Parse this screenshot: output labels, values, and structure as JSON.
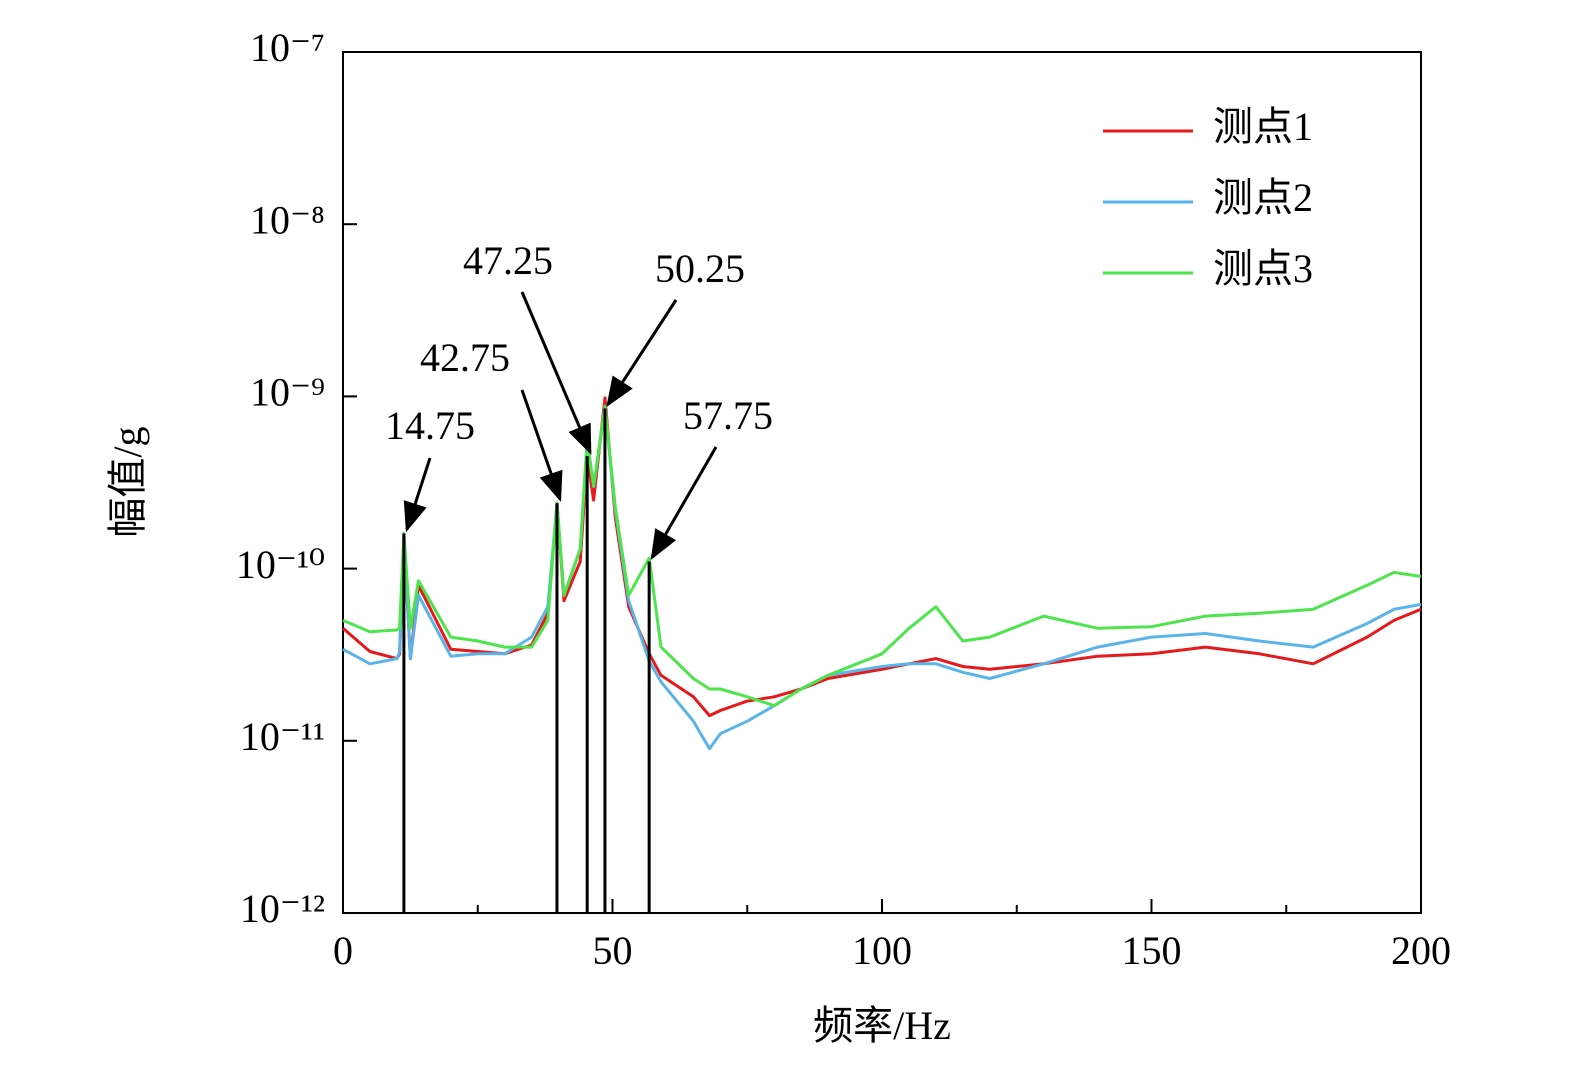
{
  "chart_data": {
    "type": "line",
    "xlabel": "频率/Hz",
    "ylabel": "幅值/g",
    "x": [
      0,
      5,
      10,
      10.5,
      11.3,
      12.5,
      14,
      20,
      25,
      30,
      35,
      38,
      39.7,
      41,
      44,
      45.3,
      46.5,
      48.6,
      50.5,
      53,
      56.8,
      59,
      65,
      68,
      70,
      75,
      80,
      85,
      90,
      100,
      105,
      110,
      115,
      120,
      130,
      140,
      150,
      160,
      170,
      180,
      190,
      195,
      200
    ],
    "series": [
      {
        "name": "测点1",
        "color": "#e41a1c",
        "values": [
          4.5e-11,
          3.3e-11,
          3e-11,
          3.2e-11,
          1.5e-10,
          3e-11,
          8e-11,
          3.4e-11,
          3.3e-11,
          3.2e-11,
          3.6e-11,
          5.5e-11,
          2.4e-10,
          6.5e-11,
          1.1e-10,
          4.5e-10,
          2.5e-10,
          9.8e-10,
          2e-10,
          6e-11,
          3.2e-11,
          2.4e-11,
          1.8e-11,
          1.4e-11,
          1.5e-11,
          1.7e-11,
          1.8e-11,
          2e-11,
          2.3e-11,
          2.6e-11,
          2.8e-11,
          3e-11,
          2.7e-11,
          2.6e-11,
          2.8e-11,
          3.1e-11,
          3.2e-11,
          3.5e-11,
          3.2e-11,
          2.8e-11,
          4e-11,
          5e-11,
          5.8e-11
        ]
      },
      {
        "name": "测点2",
        "color": "#5ab4ea",
        "values": [
          3.4e-11,
          2.8e-11,
          3e-11,
          3.3e-11,
          1.6e-10,
          3e-11,
          7e-11,
          3.1e-11,
          3.2e-11,
          3.2e-11,
          4e-11,
          6e-11,
          2.4e-10,
          7e-11,
          1.3e-10,
          5.6e-10,
          3e-10,
          8.5e-10,
          2.2e-10,
          6.5e-11,
          2.9e-11,
          2.2e-11,
          1.3e-11,
          9e-12,
          1.1e-11,
          1.3e-11,
          1.6e-11,
          2e-11,
          2.4e-11,
          2.7e-11,
          2.8e-11,
          2.8e-11,
          2.5e-11,
          2.3e-11,
          2.8e-11,
          3.5e-11,
          4e-11,
          4.2e-11,
          3.8e-11,
          3.5e-11,
          4.8e-11,
          5.8e-11,
          6.2e-11
        ]
      },
      {
        "name": "测点3",
        "color": "#4ee44e",
        "values": [
          5e-11,
          4.3e-11,
          4.4e-11,
          4.5e-11,
          1.6e-10,
          4.5e-11,
          8.5e-11,
          4e-11,
          3.8e-11,
          3.5e-11,
          3.5e-11,
          5e-11,
          2.4e-10,
          7e-11,
          1.3e-10,
          5.5e-10,
          3e-10,
          8.8e-10,
          2.3e-10,
          7e-11,
          1.15e-10,
          3.5e-11,
          2.3e-11,
          2e-11,
          2e-11,
          1.8e-11,
          1.6e-11,
          2e-11,
          2.4e-11,
          3.2e-11,
          4.5e-11,
          6e-11,
          3.8e-11,
          4e-11,
          5.3e-11,
          4.5e-11,
          4.6e-11,
          5.3e-11,
          5.5e-11,
          5.8e-11,
          8e-11,
          9.5e-11,
          9e-11
        ]
      }
    ],
    "annotations": [
      {
        "text": "14.75",
        "x": 11.3,
        "y": 1.6e-10
      },
      {
        "text": "42.75",
        "x": 39.7,
        "y": 2.4e-10
      },
      {
        "text": "47.25",
        "x": 45.3,
        "y": 4.5e-10
      },
      {
        "text": "50.25",
        "x": 48.6,
        "y": 8.5e-10
      },
      {
        "text": "57.75",
        "x": 56.8,
        "y": 1.1e-10
      }
    ],
    "xlim": [
      0,
      200
    ],
    "xticks": [
      0,
      50,
      100,
      150,
      200
    ],
    "xminorticks": [
      25,
      75,
      125,
      175
    ],
    "ylim": [
      1e-12,
      1e-07
    ],
    "log_y": true,
    "yticks": [
      {
        "value": 1e-12,
        "label": "10⁻¹²"
      },
      {
        "value": 1e-11,
        "label": "10⁻¹¹"
      },
      {
        "value": 1e-10,
        "label": "10⁻¹⁰"
      },
      {
        "value": 1e-09,
        "label": "10⁻⁹"
      },
      {
        "value": 1e-08,
        "label": "10⁻⁸"
      },
      {
        "value": 1e-07,
        "label": "10⁻⁷"
      }
    ],
    "legend": "upper right",
    "grid": false
  }
}
